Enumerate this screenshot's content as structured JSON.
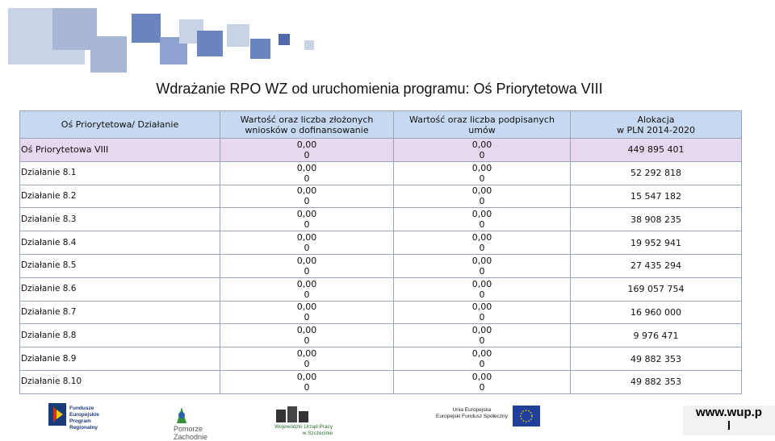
{
  "header": {
    "title": "Wdrażanie RPO WZ od uruchomienia programu: Oś Priorytetowa VIII"
  },
  "table": {
    "columns": [
      [
        "Oś Priorytetowa/ Działanie"
      ],
      [
        "Wartość oraz liczba złożonych",
        "wniosków o dofinansowanie"
      ],
      [
        "Wartość oraz liczba podpisanych",
        "umów"
      ],
      [
        "Alokacja",
        "w PLN 2014-2020"
      ]
    ],
    "rows": [
      [
        "Oś Priorytetowa VIII",
        "0,00",
        "0",
        "0,00",
        "0",
        "449 895 401"
      ],
      [
        "Działanie 8.1",
        "0,00",
        "0",
        "0,00",
        "0",
        "52 292 818"
      ],
      [
        "Działanie 8.2",
        "0,00",
        "0",
        "0,00",
        "0",
        "15 547 182"
      ],
      [
        "Działanie 8.3",
        "0,00",
        "0",
        "0,00",
        "0",
        "38 908 235"
      ],
      [
        "Działanie 8.4",
        "0,00",
        "0",
        "0,00",
        "0",
        "19 952 941"
      ],
      [
        "Działanie 8.5",
        "0,00",
        "0",
        "0,00",
        "0",
        "27 435 294"
      ],
      [
        "Działanie 8.6",
        "0,00",
        "0",
        "0,00",
        "0",
        "169 057 754"
      ],
      [
        "Działanie 8.7",
        "0,00",
        "0",
        "0,00",
        "0",
        "16 960 000"
      ],
      [
        "Działanie 8.8",
        "0,00",
        "0",
        "0,00",
        "0",
        "9 976 471"
      ],
      [
        "Działanie 8.9",
        "0,00",
        "0",
        "0,00",
        "0",
        "49 882 353"
      ],
      [
        "Działanie 8.10",
        "0,00",
        "0",
        "0,00",
        "0",
        "49 882 353"
      ]
    ]
  },
  "footer": {
    "logos": [
      [
        "Fundusze",
        "Europejskie",
        "Program Regionalny"
      ],
      [
        "Pomorze",
        "Zachodnie"
      ],
      [
        "Wojewódzki Urząd Pracy",
        "w Szczecinie"
      ],
      [
        "Unia Europejska",
        "Europejski Fundusz Społeczny"
      ]
    ],
    "website": [
      "www.wup.p",
      "l"
    ]
  }
}
